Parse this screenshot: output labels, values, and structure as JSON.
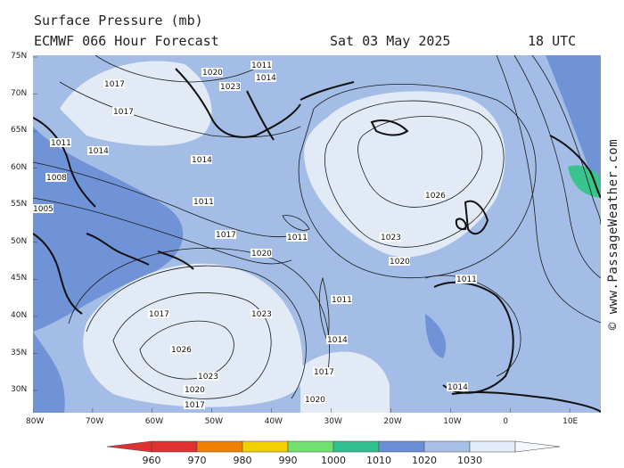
{
  "header": {
    "title": "Surface Pressure (mb)",
    "subtitle": "ECMWF 066 Hour Forecast",
    "valid_date": "Sat 03 May 2025",
    "valid_time": "18 UTC"
  },
  "copyright": "© www.PassageWeather.com",
  "axes": {
    "lat_ticks": [
      "75N",
      "70N",
      "65N",
      "60N",
      "55N",
      "50N",
      "45N",
      "40N",
      "35N",
      "30N"
    ],
    "lon_ticks": [
      "80W",
      "70W",
      "60W",
      "50W",
      "40W",
      "30W",
      "20W",
      "10W",
      "0",
      "10E"
    ]
  },
  "legend": {
    "labels": [
      "960",
      "970",
      "980",
      "990",
      "1000",
      "1010",
      "1020",
      "1030"
    ],
    "colors": [
      "#e03030",
      "#f08000",
      "#f0d000",
      "#70e070",
      "#30c090",
      "#6a8fd4",
      "#a8c0e6",
      "#e4ecf7"
    ]
  },
  "colors": {
    "band_low": "#6f93d6",
    "band_mid": "#a4bde6",
    "band_high": "#e2eaf6",
    "land": "#111111",
    "green_low": "#38c48a"
  },
  "pressure_labels": [
    {
      "text": "1020"
    },
    {
      "text": "1023"
    },
    {
      "text": "1011"
    },
    {
      "text": "1014"
    },
    {
      "text": "1017"
    },
    {
      "text": "1026"
    },
    {
      "text": "1023"
    },
    {
      "text": "1020"
    },
    {
      "text": "1011"
    },
    {
      "text": "1011"
    },
    {
      "text": "1014"
    },
    {
      "text": "1017"
    },
    {
      "text": "1020"
    },
    {
      "text": "1023"
    },
    {
      "text": "1026"
    },
    {
      "text": "1023"
    },
    {
      "text": "1020"
    },
    {
      "text": "1017"
    },
    {
      "text": "1014"
    },
    {
      "text": "1011"
    },
    {
      "text": "1008"
    },
    {
      "text": "1005"
    },
    {
      "text": "1017"
    },
    {
      "text": "1014"
    },
    {
      "text": "1011"
    },
    {
      "text": "1017"
    },
    {
      "text": "1014"
    },
    {
      "text": "1011"
    },
    {
      "text": "1020"
    },
    {
      "text": "1017"
    }
  ]
}
